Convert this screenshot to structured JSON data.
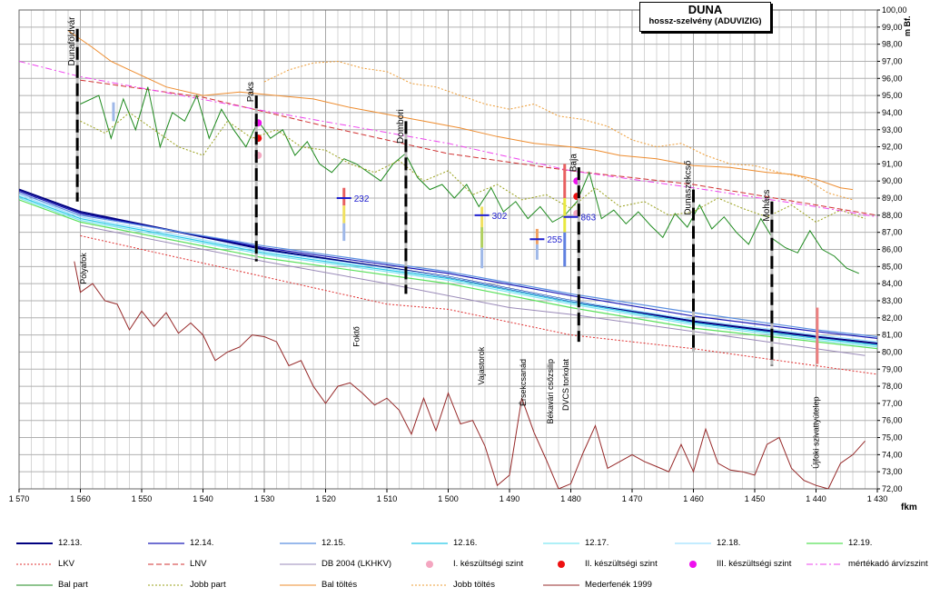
{
  "title": {
    "main": "DUNA",
    "sub": "hossz-szelvény (ADUVIZIG)"
  },
  "chart_data": {
    "type": "line",
    "x_unit": "fkm",
    "y_unit": "m Bf.",
    "xlim": [
      1570,
      1430
    ],
    "ylim": [
      72,
      100
    ],
    "x_ticks": [
      1570,
      1560,
      1550,
      1540,
      1530,
      1520,
      1510,
      1500,
      1490,
      1480,
      1470,
      1460,
      1450,
      1440,
      1430
    ],
    "x_tick_labels": [
      "1 570",
      "1 560",
      "1 550",
      "1 540",
      "1 530",
      "1 520",
      "1 510",
      "1 500",
      "1 490",
      "1 480",
      "1 470",
      "1 460",
      "1 450",
      "1 440",
      "1 430"
    ],
    "y_ticks": [
      72,
      73,
      74,
      75,
      76,
      77,
      78,
      79,
      80,
      81,
      82,
      83,
      84,
      85,
      86,
      87,
      88,
      89,
      90,
      91,
      92,
      93,
      94,
      95,
      96,
      97,
      98,
      99,
      100
    ],
    "y_tick_labels": [
      "72,00",
      "73,00",
      "74,00",
      "75,00",
      "76,00",
      "77,00",
      "78,00",
      "79,00",
      "80,00",
      "81,00",
      "82,00",
      "83,00",
      "84,00",
      "85,00",
      "86,00",
      "87,00",
      "88,00",
      "89,00",
      "90,00",
      "91,00",
      "92,00",
      "93,00",
      "94,00",
      "95,00",
      "96,00",
      "97,00",
      "98,00",
      "99,00",
      "100,00"
    ],
    "grid": true,
    "series": [
      {
        "name": "12.13.",
        "color": "#000080",
        "width": 2,
        "dash": "",
        "x": [
          1570,
          1560,
          1530,
          1500,
          1480,
          1460,
          1440,
          1430
        ],
        "y": [
          89.5,
          88.2,
          86.0,
          84.4,
          83.0,
          81.8,
          80.9,
          80.5
        ]
      },
      {
        "name": "12.14.",
        "color": "#1a1ab8",
        "width": 1.2,
        "dash": "",
        "x": [
          1570,
          1560,
          1530,
          1500,
          1480,
          1460,
          1440,
          1430
        ],
        "y": [
          89.4,
          88.1,
          86.1,
          84.6,
          83.3,
          82.1,
          81.2,
          80.8
        ]
      },
      {
        "name": "12.15.",
        "color": "#5b8fe0",
        "width": 1.2,
        "dash": "",
        "x": [
          1570,
          1560,
          1530,
          1500,
          1480,
          1460,
          1440,
          1430
        ],
        "y": [
          89.3,
          88.0,
          86.2,
          84.7,
          83.4,
          82.3,
          81.3,
          80.9
        ]
      },
      {
        "name": "12.16.",
        "color": "#25c8e6",
        "width": 1.2,
        "dash": "",
        "x": [
          1570,
          1560,
          1530,
          1500,
          1480,
          1460,
          1440,
          1430
        ],
        "y": [
          89.1,
          87.8,
          85.8,
          84.3,
          82.9,
          81.7,
          80.8,
          80.4
        ]
      },
      {
        "name": "12.17.",
        "color": "#7fe6f2",
        "width": 1.2,
        "dash": "",
        "x": [
          1570,
          1560,
          1530,
          1500,
          1480,
          1460,
          1440,
          1430
        ],
        "y": [
          89.0,
          87.7,
          85.7,
          84.2,
          82.8,
          81.6,
          80.7,
          80.3
        ]
      },
      {
        "name": "12.18.",
        "color": "#9fe0ff",
        "width": 1.2,
        "dash": "",
        "x": [
          1570,
          1560,
          1530,
          1500,
          1480,
          1460,
          1440,
          1430
        ],
        "y": [
          89.2,
          87.9,
          85.9,
          84.4,
          83.0,
          81.9,
          81.0,
          80.6
        ]
      },
      {
        "name": "12.19.",
        "color": "#59e059",
        "width": 1.2,
        "dash": "",
        "x": [
          1570,
          1560,
          1530,
          1500,
          1480,
          1460,
          1440,
          1430
        ],
        "y": [
          88.9,
          87.6,
          85.5,
          84.0,
          82.6,
          81.4,
          80.6,
          80.2
        ]
      },
      {
        "name": "LKV",
        "color": "#e03030",
        "width": 1,
        "dash": "2,2",
        "x": [
          1560,
          1530,
          1510,
          1500,
          1480,
          1460,
          1440,
          1430
        ],
        "y": [
          86.8,
          84.4,
          82.8,
          82.5,
          81.0,
          80.2,
          79.2,
          78.7
        ]
      },
      {
        "name": "LNV",
        "color": "#d03030",
        "width": 1,
        "dash": "6,3",
        "x": [
          1560,
          1540,
          1520,
          1500,
          1480,
          1460,
          1440,
          1430
        ],
        "y": [
          95.9,
          94.9,
          93.2,
          91.6,
          90.6,
          89.8,
          88.6,
          88.0
        ]
      },
      {
        "name": "DB 2004 (LKHKV)",
        "color": "#9a8ab8",
        "width": 1,
        "dash": "",
        "x": [
          1560,
          1530,
          1510,
          1490,
          1480,
          1460,
          1440,
          1432
        ],
        "y": [
          87.4,
          85.3,
          84.0,
          82.6,
          82.2,
          81.2,
          80.2,
          79.8
        ]
      },
      {
        "name": "I. készültségi szint",
        "color": "#f4a6c0",
        "marker": "circle",
        "x": [
          1531,
          1479
        ],
        "y": [
          91.5,
          88.1
        ]
      },
      {
        "name": "II. készültségi szint",
        "color": "#ee1111",
        "marker": "circle",
        "x": [
          1531,
          1479
        ],
        "y": [
          92.5,
          89.1
        ]
      },
      {
        "name": "III. készültségi szint",
        "color": "#ee11ee",
        "marker": "circle",
        "x": [
          1531,
          1479
        ],
        "y": [
          93.4,
          90.0
        ]
      },
      {
        "name": "mértékadó árvízszint",
        "color": "#ee44ee",
        "width": 1,
        "dash": "7,3,2,3",
        "x": [
          1570,
          1560,
          1530,
          1500,
          1480,
          1460,
          1440,
          1430
        ],
        "y": [
          97.0,
          96.1,
          94.1,
          92.2,
          90.6,
          89.6,
          88.5,
          87.9
        ]
      },
      {
        "name": "Bal part",
        "color": "#1e8a1e",
        "width": 1,
        "dash": "",
        "x": [
          1560,
          1557,
          1555,
          1553,
          1551,
          1549,
          1547,
          1545,
          1543,
          1541,
          1539,
          1537,
          1535,
          1533,
          1531,
          1529,
          1527,
          1525,
          1523,
          1521,
          1519,
          1517,
          1515,
          1513,
          1511,
          1509,
          1507,
          1505,
          1503,
          1501,
          1499,
          1497,
          1495,
          1493,
          1491,
          1489,
          1487,
          1485,
          1483,
          1481,
          1479,
          1477,
          1475,
          1473,
          1471,
          1469,
          1467,
          1465,
          1463,
          1461,
          1459,
          1457,
          1455,
          1453,
          1451,
          1449,
          1447,
          1445,
          1443,
          1441,
          1439,
          1437,
          1435,
          1433
        ],
        "y": [
          94.5,
          95.0,
          92.5,
          94.8,
          93.0,
          95.5,
          92.0,
          94.0,
          93.5,
          95.0,
          92.5,
          94.2,
          93.0,
          92.0,
          93.5,
          92.5,
          93.0,
          91.5,
          92.3,
          91.0,
          90.5,
          91.3,
          91.0,
          90.5,
          90.0,
          91.0,
          91.6,
          90.2,
          89.5,
          89.8,
          89.0,
          89.8,
          88.5,
          89.6,
          88.2,
          88.8,
          87.8,
          88.5,
          87.6,
          88.0,
          88.8,
          90.5,
          87.8,
          88.3,
          87.5,
          88.2,
          87.4,
          86.7,
          88.1,
          87.3,
          88.6,
          87.2,
          87.9,
          87.0,
          86.3,
          87.8,
          86.6,
          86.1,
          85.8,
          87.1,
          86.0,
          85.6,
          84.9,
          84.6
        ]
      },
      {
        "name": "Jobb part",
        "color": "#99a019",
        "width": 1,
        "dash": "2,2",
        "x": [
          1560,
          1556,
          1552,
          1548,
          1544,
          1540,
          1536,
          1532,
          1528,
          1524,
          1520,
          1516,
          1512,
          1508,
          1504,
          1500,
          1496,
          1492,
          1488,
          1484,
          1480,
          1476,
          1472,
          1468,
          1464,
          1460,
          1456,
          1452,
          1448,
          1444,
          1440,
          1436,
          1432
        ],
        "y": [
          93.5,
          92.8,
          94.0,
          93.0,
          92.0,
          91.5,
          93.5,
          92.5,
          93.0,
          92.0,
          91.8,
          91.0,
          90.5,
          91.2,
          90.0,
          90.6,
          89.2,
          89.8,
          88.9,
          89.2,
          88.4,
          89.6,
          88.5,
          88.8,
          88.0,
          88.2,
          89.0,
          88.4,
          87.9,
          88.6,
          87.6,
          88.3,
          87.8
        ]
      },
      {
        "name": "Bal töltés",
        "color": "#ee8c2e",
        "width": 1,
        "dash": "",
        "x": [
          1562,
          1558,
          1555,
          1552,
          1549,
          1546,
          1540,
          1534,
          1528,
          1522,
          1516,
          1510,
          1504,
          1498,
          1492,
          1486,
          1480,
          1476,
          1472,
          1466,
          1460,
          1454,
          1448,
          1444,
          1440,
          1436,
          1434
        ],
        "y": [
          98.8,
          97.8,
          97.0,
          96.5,
          96.0,
          95.5,
          95.0,
          95.2,
          95.0,
          94.8,
          94.3,
          93.9,
          93.5,
          93.1,
          92.6,
          92.2,
          92.0,
          91.8,
          91.5,
          91.3,
          90.9,
          90.8,
          90.5,
          90.4,
          90.1,
          89.6,
          89.5
        ]
      },
      {
        "name": "Jobb töltés",
        "color": "#ee9c35",
        "width": 1,
        "dash": "2,2",
        "x": [
          1530,
          1526,
          1522,
          1518,
          1514,
          1510,
          1506,
          1502,
          1498,
          1494,
          1490,
          1486,
          1482,
          1478,
          1474,
          1470,
          1466,
          1462,
          1458,
          1454,
          1450,
          1446,
          1442,
          1438,
          1434
        ],
        "y": [
          95.8,
          96.5,
          96.9,
          97.0,
          96.6,
          96.4,
          95.7,
          95.5,
          95.0,
          94.5,
          94.2,
          94.5,
          93.8,
          93.6,
          93.2,
          92.4,
          92.0,
          92.2,
          91.5,
          91.0,
          90.9,
          90.5,
          90.2,
          89.3,
          88.9
        ]
      },
      {
        "name": "Mederfenék 1999",
        "color": "#962828",
        "width": 1,
        "dash": "",
        "x": [
          1561,
          1560,
          1558,
          1556,
          1554,
          1552,
          1550,
          1548,
          1546,
          1544,
          1542,
          1540,
          1538,
          1536,
          1534,
          1532,
          1530,
          1528,
          1526,
          1524,
          1522,
          1520,
          1518,
          1516,
          1514,
          1512,
          1510,
          1508,
          1506,
          1504,
          1502,
          1500,
          1498,
          1496,
          1494,
          1492,
          1490,
          1488,
          1486,
          1484,
          1482,
          1480,
          1478,
          1476,
          1474,
          1472,
          1470,
          1468,
          1466,
          1464,
          1462,
          1460,
          1458,
          1456,
          1454,
          1452,
          1450,
          1448,
          1446,
          1444,
          1442,
          1440,
          1438,
          1436,
          1434,
          1432
        ],
        "y": [
          85.3,
          83.5,
          84.0,
          83.0,
          82.8,
          81.3,
          82.4,
          81.5,
          82.3,
          81.1,
          81.7,
          81.0,
          79.5,
          80.0,
          80.3,
          81.0,
          80.9,
          80.6,
          79.2,
          79.5,
          78.0,
          77.0,
          78.0,
          78.2,
          77.6,
          76.9,
          77.3,
          76.6,
          75.2,
          77.3,
          75.4,
          77.6,
          75.8,
          76.0,
          74.5,
          72.2,
          72.8,
          77.3,
          75.3,
          73.7,
          72.0,
          72.3,
          74.1,
          75.7,
          73.2,
          73.6,
          74.0,
          73.6,
          73.3,
          73.0,
          74.6,
          73.0,
          75.5,
          73.5,
          73.1,
          73.0,
          72.8,
          74.6,
          75.0,
          73.2,
          72.5,
          72.2,
          72.0,
          73.5,
          74.0,
          74.8
        ]
      }
    ],
    "locations": [
      {
        "name": "Dunaföldvár",
        "x": 1560.5,
        "label_y": 99.6,
        "bar_top": 98.9,
        "bar_bottom": 88.8
      },
      {
        "name": "Paks",
        "x": 1531.3,
        "label_y": 95.8,
        "bar_top": 95.0,
        "bar_bottom": 85.3
      },
      {
        "name": "Dombori",
        "x": 1506.9,
        "label_y": 94.2,
        "bar_top": 93.5,
        "bar_bottom": 83.4
      },
      {
        "name": "Baja",
        "x": 1478.7,
        "label_y": 91.6,
        "bar_top": 90.8,
        "bar_bottom": 80.6
      },
      {
        "name": "Dunaszekcső",
        "x": 1460.0,
        "label_y": 91.2,
        "bar_top": 89.5,
        "bar_bottom": 80.0
      },
      {
        "name": "Mohács",
        "x": 1447.2,
        "label_y": 89.5,
        "bar_top": 88.8,
        "bar_bottom": 79.2
      }
    ],
    "lower_labels": [
      {
        "name": "Pólyafok",
        "x": 1559.5,
        "top_y": 85.8
      },
      {
        "name": "Foktő",
        "x": 1515.0,
        "top_y": 81.5
      },
      {
        "name": "Vajastorok",
        "x": 1494.6,
        "top_y": 80.3
      },
      {
        "name": "Érsekcsanád",
        "x": 1487.8,
        "top_y": 79.6
      },
      {
        "name": "Békavári csőzsilip",
        "x": 1483.3,
        "top_y": 79.6
      },
      {
        "name": "DVCS torkolat",
        "x": 1480.8,
        "top_y": 79.6
      },
      {
        "name": "Újfoki szivattyútelep",
        "x": 1440.0,
        "top_y": 77.4
      }
    ],
    "station_values": [
      {
        "value": "232",
        "x": 1517.0,
        "y": 89.0
      },
      {
        "value": "302",
        "x": 1494.5,
        "y": 88.0
      },
      {
        "value": "255",
        "x": 1485.5,
        "y": 86.6
      },
      {
        "value": "863",
        "x": 1480.0,
        "y": 87.9
      }
    ],
    "legend": [
      "12.13.",
      "12.14.",
      "12.15.",
      "12.16.",
      "12.17.",
      "12.18.",
      "12.19.",
      "LKV",
      "LNV",
      "DB 2004 (LKHKV)",
      "I. készültségi szint",
      "II. készültségi szint",
      "III. készültségi szint",
      "mértékadó árvízszint",
      "Bal part",
      "Jobb part",
      "Bal töltés",
      "Jobb töltés",
      "Mederfenék 1999"
    ]
  }
}
